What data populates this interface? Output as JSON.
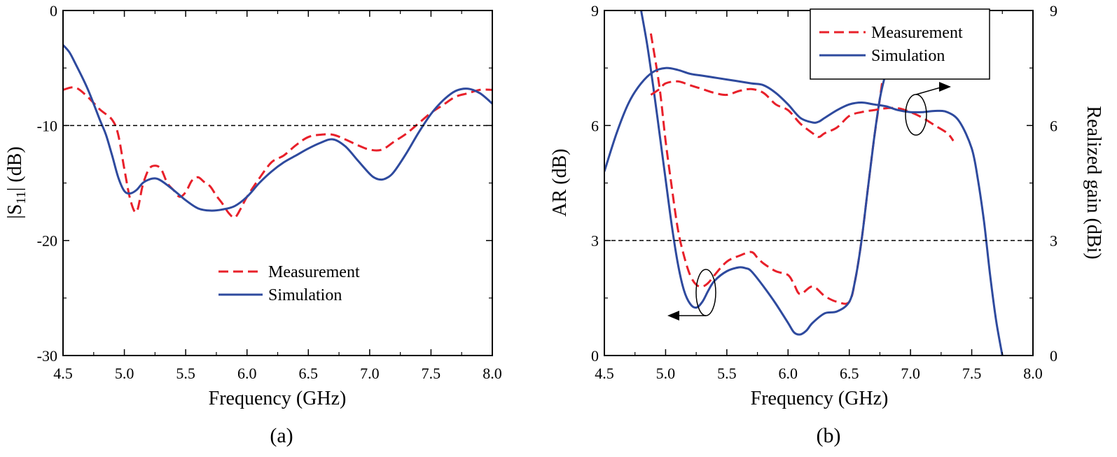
{
  "colors": {
    "measurement": "#e8202a",
    "simulation": "#2e4a9e",
    "axis": "#000000"
  },
  "chart_data": [
    {
      "type": "line",
      "caption": "(a)",
      "xlabel": "Frequency (GHz)",
      "ylabel_main": "|S",
      "ylabel_sub": "11",
      "ylabel_end": "| (dB)",
      "xlim": [
        4.5,
        8.0
      ],
      "ylim": [
        -30,
        0
      ],
      "xticks": [
        "4.5",
        "5.0",
        "5.5",
        "6.0",
        "6.5",
        "7.0",
        "7.5",
        "8.0"
      ],
      "yticks": [
        "0",
        "-10",
        "-20",
        "-30"
      ],
      "reference_line": -10,
      "legend": [
        "Measurement",
        "Simulation"
      ],
      "series": [
        {
          "name": "Measurement",
          "style": "dashed",
          "x": [
            4.5,
            4.6,
            4.7,
            4.8,
            4.9,
            4.95,
            5.0,
            5.05,
            5.1,
            5.15,
            5.2,
            5.25,
            5.3,
            5.35,
            5.4,
            5.45,
            5.5,
            5.55,
            5.6,
            5.65,
            5.7,
            5.75,
            5.8,
            5.85,
            5.9,
            5.95,
            6.0,
            6.1,
            6.2,
            6.3,
            6.4,
            6.5,
            6.6,
            6.7,
            6.8,
            6.9,
            7.0,
            7.1,
            7.2,
            7.3,
            7.4,
            7.5,
            7.6,
            7.7,
            7.8,
            7.9,
            8.0
          ],
          "y": [
            -6.9,
            -6.7,
            -7.5,
            -8.6,
            -9.5,
            -10.8,
            -13.8,
            -16.5,
            -17.5,
            -15.2,
            -13.8,
            -13.5,
            -13.8,
            -15.0,
            -15.6,
            -16.2,
            -15.8,
            -14.8,
            -14.5,
            -14.9,
            -15.3,
            -16.1,
            -16.8,
            -17.6,
            -18.0,
            -17.2,
            -16.2,
            -14.6,
            -13.2,
            -12.6,
            -11.7,
            -11.0,
            -10.8,
            -10.8,
            -11.2,
            -11.7,
            -12.1,
            -12.1,
            -11.4,
            -10.7,
            -9.8,
            -8.9,
            -8.2,
            -7.5,
            -7.2,
            -6.9,
            -6.9
          ]
        },
        {
          "name": "Simulation",
          "style": "solid",
          "x": [
            4.5,
            4.55,
            4.6,
            4.7,
            4.8,
            4.85,
            4.9,
            4.95,
            5.0,
            5.05,
            5.1,
            5.15,
            5.2,
            5.25,
            5.3,
            5.4,
            5.5,
            5.6,
            5.7,
            5.8,
            5.9,
            6.0,
            6.1,
            6.2,
            6.3,
            6.4,
            6.5,
            6.6,
            6.7,
            6.8,
            6.9,
            7.0,
            7.05,
            7.1,
            7.15,
            7.2,
            7.3,
            7.4,
            7.5,
            7.6,
            7.7,
            7.8,
            7.9,
            8.0
          ],
          "y": [
            -3.0,
            -3.6,
            -4.6,
            -6.8,
            -9.5,
            -10.8,
            -12.6,
            -14.5,
            -15.7,
            -15.9,
            -15.6,
            -15.0,
            -14.7,
            -14.6,
            -14.8,
            -15.6,
            -16.5,
            -17.2,
            -17.4,
            -17.3,
            -17.0,
            -16.2,
            -15.0,
            -14.0,
            -13.2,
            -12.6,
            -12.0,
            -11.5,
            -11.2,
            -11.8,
            -13.0,
            -14.2,
            -14.6,
            -14.7,
            -14.5,
            -14.0,
            -12.4,
            -10.6,
            -9.0,
            -7.8,
            -7.0,
            -6.8,
            -7.2,
            -8.1
          ]
        }
      ]
    },
    {
      "type": "line",
      "caption": "(b)",
      "xlabel": "Frequency (GHz)",
      "ylabel_left": "AR (dB)",
      "ylabel_right": "Realized gain (dBi)",
      "xlim": [
        4.5,
        8.0
      ],
      "ylim": [
        0,
        9
      ],
      "ylim_right": [
        0,
        9
      ],
      "xticks": [
        "4.5",
        "5.0",
        "5.5",
        "6.0",
        "6.5",
        "7.0",
        "7.5",
        "8.0"
      ],
      "yticks": [
        "0",
        "3",
        "6",
        "9"
      ],
      "yticks_right": [
        "0",
        "3",
        "6",
        "9"
      ],
      "reference_line": 3,
      "legend": [
        "Measurement",
        "Simulation"
      ],
      "series": [
        {
          "name": "Measurement",
          "quantity": "AR",
          "style": "dashed",
          "x": [
            4.88,
            4.95,
            5.0,
            5.05,
            5.1,
            5.15,
            5.2,
            5.25,
            5.3,
            5.35,
            5.4,
            5.5,
            5.6,
            5.7,
            5.75,
            5.8,
            5.9,
            6.0,
            6.05,
            6.1,
            6.2,
            6.3,
            6.4,
            6.5,
            6.55,
            6.6,
            6.65,
            6.7,
            6.75,
            6.78
          ],
          "y": [
            8.4,
            7.0,
            5.6,
            4.4,
            3.3,
            2.6,
            2.1,
            1.85,
            1.8,
            1.9,
            2.1,
            2.45,
            2.6,
            2.7,
            2.55,
            2.4,
            2.2,
            2.1,
            1.85,
            1.6,
            1.8,
            1.55,
            1.4,
            1.4,
            2.0,
            3.0,
            4.3,
            5.6,
            6.7,
            7.4
          ]
        },
        {
          "name": "Simulation",
          "quantity": "AR",
          "style": "solid",
          "x": [
            4.8,
            4.85,
            4.9,
            4.95,
            5.0,
            5.05,
            5.1,
            5.15,
            5.2,
            5.25,
            5.3,
            5.35,
            5.4,
            5.5,
            5.6,
            5.65,
            5.7,
            5.8,
            5.9,
            6.0,
            6.05,
            6.1,
            6.15,
            6.2,
            6.3,
            6.4,
            6.5,
            6.55,
            6.6,
            6.65,
            6.7,
            6.75,
            6.8
          ],
          "y": [
            9.0,
            8.1,
            7.0,
            5.8,
            4.6,
            3.4,
            2.4,
            1.7,
            1.35,
            1.25,
            1.4,
            1.7,
            1.95,
            2.2,
            2.3,
            2.28,
            2.2,
            1.8,
            1.35,
            0.85,
            0.6,
            0.55,
            0.65,
            0.85,
            1.1,
            1.15,
            1.4,
            2.0,
            3.0,
            4.3,
            5.6,
            6.7,
            7.4
          ]
        },
        {
          "name": "Measurement",
          "quantity": "Realized gain",
          "style": "dashed",
          "x": [
            4.88,
            4.95,
            5.0,
            5.1,
            5.2,
            5.3,
            5.4,
            5.5,
            5.6,
            5.7,
            5.8,
            5.9,
            6.0,
            6.1,
            6.2,
            6.25,
            6.3,
            6.4,
            6.5,
            6.6,
            6.7,
            6.8,
            6.9,
            7.0,
            7.1,
            7.2,
            7.3,
            7.35
          ],
          "y": [
            6.8,
            6.95,
            7.1,
            7.15,
            7.05,
            6.95,
            6.85,
            6.8,
            6.9,
            6.95,
            6.85,
            6.55,
            6.4,
            6.05,
            5.8,
            5.7,
            5.8,
            5.95,
            6.25,
            6.35,
            6.4,
            6.45,
            6.45,
            6.35,
            6.2,
            6.0,
            5.8,
            5.6
          ]
        },
        {
          "name": "Simulation",
          "quantity": "Realized gain",
          "style": "solid",
          "x": [
            4.5,
            4.6,
            4.7,
            4.8,
            4.9,
            5.0,
            5.1,
            5.2,
            5.3,
            5.5,
            5.7,
            5.8,
            5.9,
            6.0,
            6.1,
            6.2,
            6.25,
            6.3,
            6.4,
            6.5,
            6.6,
            6.7,
            6.8,
            6.9,
            7.0,
            7.1,
            7.2,
            7.3,
            7.4,
            7.5,
            7.55,
            7.6,
            7.65,
            7.7,
            7.75
          ],
          "y": [
            4.8,
            5.8,
            6.6,
            7.1,
            7.4,
            7.5,
            7.45,
            7.35,
            7.3,
            7.2,
            7.1,
            7.05,
            6.85,
            6.55,
            6.2,
            6.08,
            6.1,
            6.2,
            6.4,
            6.55,
            6.6,
            6.55,
            6.5,
            6.4,
            6.35,
            6.35,
            6.38,
            6.35,
            6.1,
            5.4,
            4.6,
            3.5,
            2.1,
            0.9,
            0.0
          ]
        }
      ]
    }
  ]
}
